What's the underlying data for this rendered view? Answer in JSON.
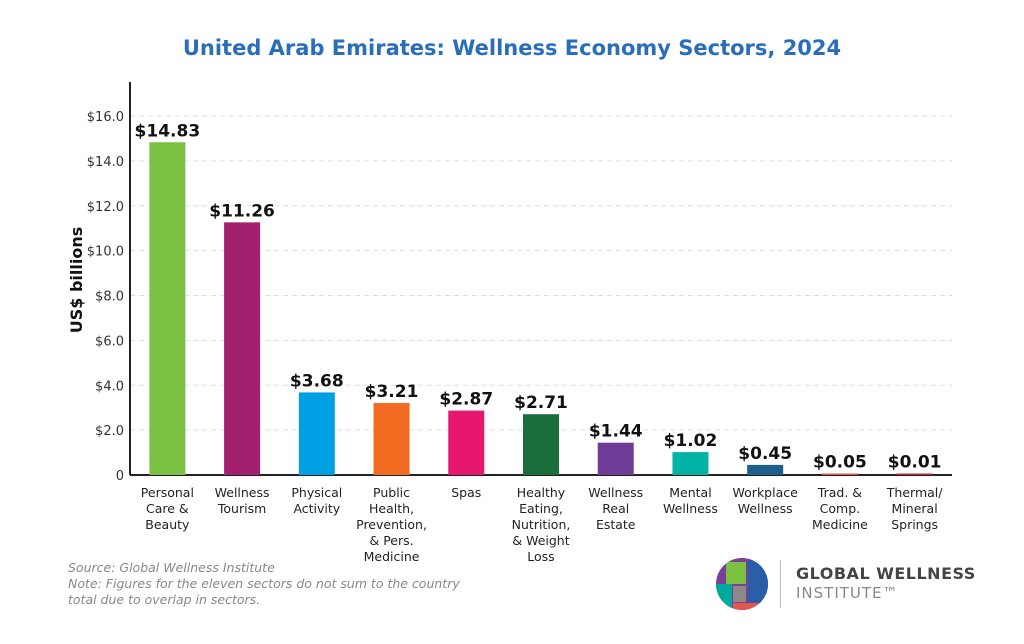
{
  "chart_data": {
    "type": "bar",
    "title": "United Arab Emirates: Wellness Economy Sectors, 2024",
    "ylabel": "US$ billions",
    "xlabel": "",
    "ylim": [
      0,
      17.5
    ],
    "yticks": [
      0,
      2,
      4,
      6,
      8,
      10,
      12,
      14,
      16
    ],
    "ytick_labels": [
      "0",
      "$2.0",
      "$4.0",
      "$6.0",
      "$8.0",
      "$10.0",
      "$12.0",
      "$14.0",
      "$16.0"
    ],
    "grid": true,
    "categories": [
      [
        "Personal",
        "Care &",
        "Beauty"
      ],
      [
        "Wellness",
        "Tourism"
      ],
      [
        "Physical",
        "Activity"
      ],
      [
        "Public",
        "Health,",
        "Prevention,",
        "& Pers.",
        "Medicine"
      ],
      [
        "Spas"
      ],
      [
        "Healthy",
        "Eating,",
        "Nutrition,",
        "& Weight",
        "Loss"
      ],
      [
        "Wellness",
        "Real",
        "Estate"
      ],
      [
        "Mental",
        "Wellness"
      ],
      [
        "Workplace",
        "Wellness"
      ],
      [
        "Trad. &",
        "Comp.",
        "Medicine"
      ],
      [
        "Thermal/",
        "Mineral",
        "Springs"
      ]
    ],
    "values": [
      14.83,
      11.26,
      3.68,
      3.21,
      2.87,
      2.71,
      1.44,
      1.02,
      0.45,
      0.05,
      0.01
    ],
    "data_labels": [
      "$14.83",
      "$11.26",
      "$3.68",
      "$3.21",
      "$2.87",
      "$2.71",
      "$1.44",
      "$1.02",
      "$0.45",
      "$0.05",
      "$0.01"
    ],
    "colors": [
      "#7ac143",
      "#a3206e",
      "#009fe3",
      "#f26b21",
      "#e6176f",
      "#1a6e3a",
      "#6e3b97",
      "#00b3a4",
      "#1f5f8b",
      "#e2583e",
      "#c0272d"
    ]
  },
  "notes": {
    "source": "Source: Global Wellness Institute",
    "note1": "Note: Figures for the eleven sectors do not sum to the country",
    "note2": "total due to overlap in sectors."
  },
  "logo": {
    "line1": "GLOBAL WELLNESS",
    "line2": "INSTITUTE™"
  }
}
